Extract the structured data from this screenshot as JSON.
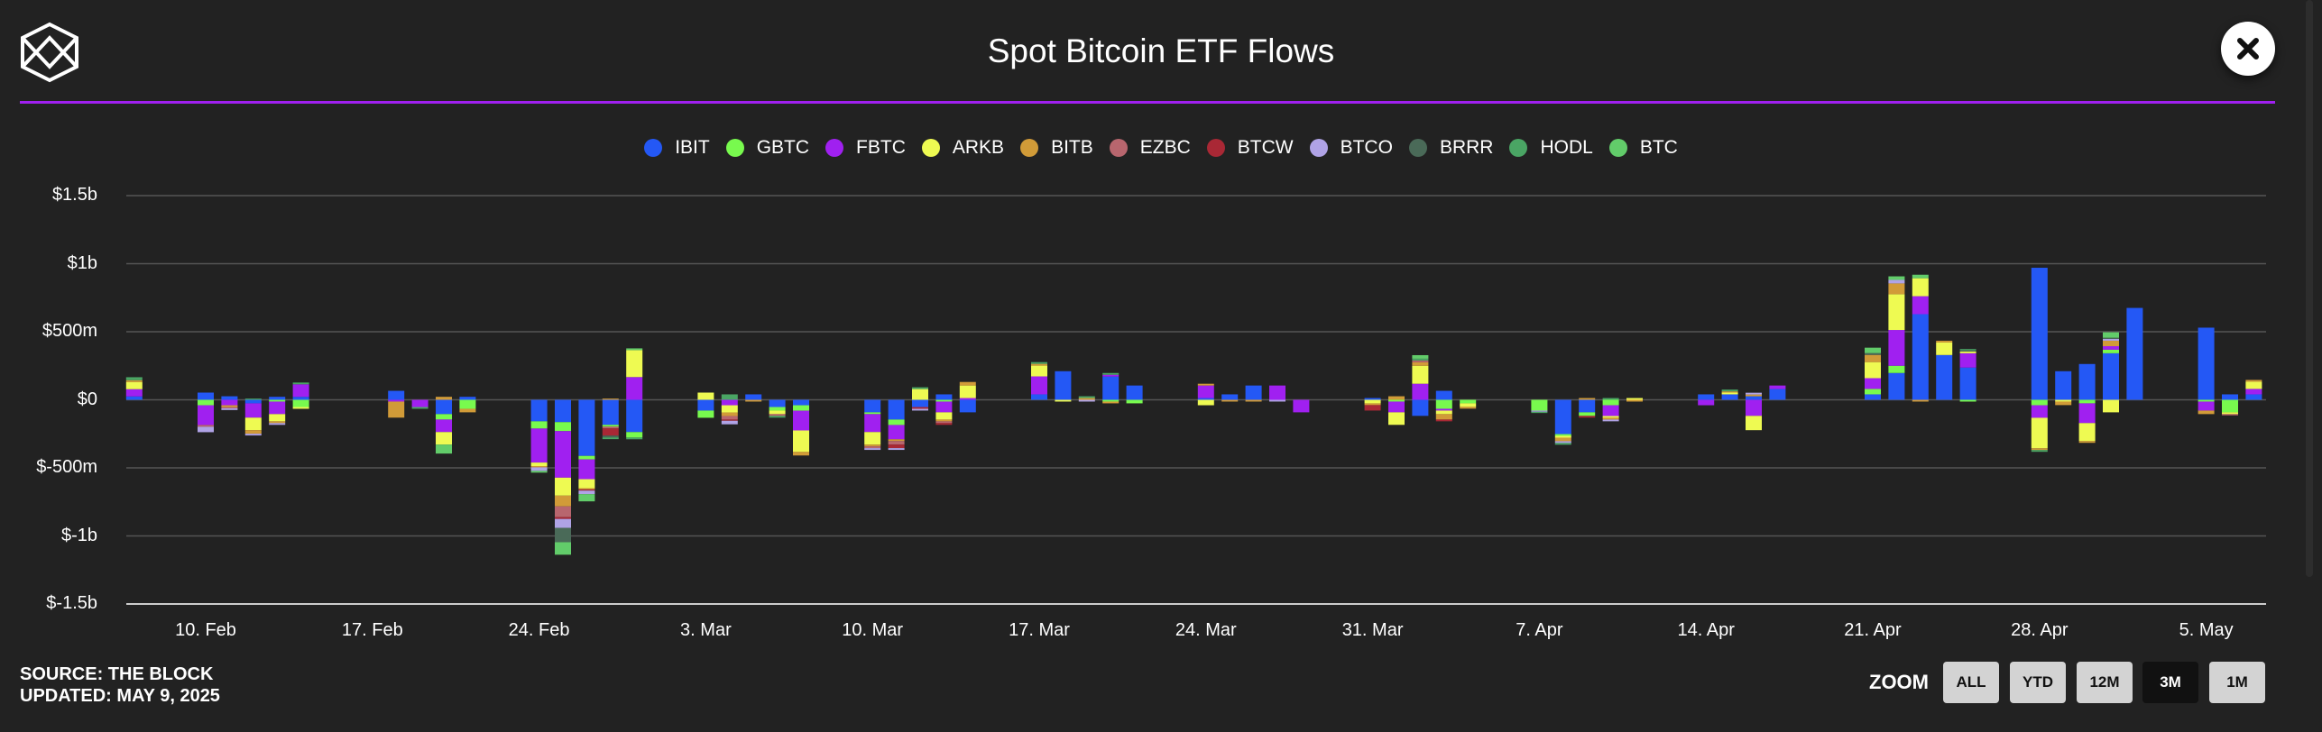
{
  "header": {
    "title": "Spot Bitcoin ETF Flows",
    "close_icon": "close-icon",
    "logo_icon": "the-block-logo-icon"
  },
  "footer": {
    "source": "SOURCE: THE BLOCK",
    "updated": "UPDATED: MAY 9, 2025"
  },
  "zoom": {
    "label": "ZOOM",
    "buttons": [
      "ALL",
      "YTD",
      "12M",
      "3M",
      "1M"
    ],
    "active": "3M"
  },
  "chart_data": {
    "type": "bar",
    "stacked": true,
    "title": "Spot Bitcoin ETF Flows",
    "xlabel": "",
    "ylabel": "",
    "ylim": [
      -1500,
      1500
    ],
    "units": "USD millions",
    "grid": true,
    "legend_position": "top",
    "yticks": [
      {
        "v": 1500,
        "label": "$1.5b"
      },
      {
        "v": 1000,
        "label": "$1b"
      },
      {
        "v": 500,
        "label": "$500m"
      },
      {
        "v": 0,
        "label": "$0"
      },
      {
        "v": -500,
        "label": "$-500m"
      },
      {
        "v": -1000,
        "label": "$-1b"
      },
      {
        "v": -1500,
        "label": "$-1.5b"
      }
    ],
    "xticks": [
      {
        "date": "2025-02-10",
        "label": "10. Feb"
      },
      {
        "date": "2025-02-17",
        "label": "17. Feb"
      },
      {
        "date": "2025-02-24",
        "label": "24. Feb"
      },
      {
        "date": "2025-03-03",
        "label": "3. Mar"
      },
      {
        "date": "2025-03-10",
        "label": "10. Mar"
      },
      {
        "date": "2025-03-17",
        "label": "17. Mar"
      },
      {
        "date": "2025-03-24",
        "label": "24. Mar"
      },
      {
        "date": "2025-03-31",
        "label": "31. Mar"
      },
      {
        "date": "2025-04-07",
        "label": "7. Apr"
      },
      {
        "date": "2025-04-14",
        "label": "14. Apr"
      },
      {
        "date": "2025-04-21",
        "label": "21. Apr"
      },
      {
        "date": "2025-04-28",
        "label": "28. Apr"
      },
      {
        "date": "2025-05-05",
        "label": "5. May"
      }
    ],
    "series": [
      {
        "name": "IBIT",
        "color": "#2458f5"
      },
      {
        "name": "GBTC",
        "color": "#78fa4e"
      },
      {
        "name": "FBTC",
        "color": "#a020f0"
      },
      {
        "name": "ARKB",
        "color": "#eefa52"
      },
      {
        "name": "BITB",
        "color": "#d19b38"
      },
      {
        "name": "EZBC",
        "color": "#b8666e"
      },
      {
        "name": "BTCW",
        "color": "#a92835"
      },
      {
        "name": "BTCO",
        "color": "#b0a3e6"
      },
      {
        "name": "BRRR",
        "color": "#4a6a58"
      },
      {
        "name": "HODL",
        "color": "#4aa564"
      },
      {
        "name": "BTC",
        "color": "#62cc6a"
      }
    ],
    "days": [
      {
        "date": "2025-02-07",
        "IBIT": 25,
        "FBTC": 53,
        "ARKB": 53,
        "BITB": 13,
        "HODL": 22
      },
      {
        "date": "2025-02-10",
        "IBIT": 53,
        "GBTC": -40,
        "FBTC": -145,
        "EZBC": -13,
        "BTCO": -40
      },
      {
        "date": "2025-02-11",
        "IBIT": 26,
        "FBTC": -40,
        "BITB": -13,
        "EZBC": -9,
        "BTCO": -13
      },
      {
        "date": "2025-02-12",
        "IBIT": -26,
        "FBTC": -105,
        "ARKB": -92,
        "BITB": -26,
        "BTCO": -13,
        "HODL": 9
      },
      {
        "date": "2025-02-13",
        "IBIT": 22,
        "GBTC": -13,
        "FBTC": -92,
        "ARKB": -53,
        "BITB": -13,
        "BTCO": -13
      },
      {
        "date": "2025-02-14",
        "IBIT": 22,
        "FBTC": 92,
        "HODL": 13,
        "GBTC": -53,
        "ARKB": -13
      },
      {
        "date": "2025-02-18",
        "IBIT": 66,
        "FBTC": -13,
        "BITB": -118
      },
      {
        "date": "2025-02-19",
        "FBTC": -53,
        "HODL": -13
      },
      {
        "date": "2025-02-20",
        "BITB": 22,
        "IBIT": -105,
        "GBTC": -40,
        "FBTC": -92,
        "ARKB": -92,
        "BTC": -66
      },
      {
        "date": "2025-02-21",
        "IBIT": 22,
        "GBTC": -66,
        "BITB": -26
      },
      {
        "date": "2025-02-24",
        "IBIT": -158,
        "GBTC": -53,
        "FBTC": -250,
        "ARKB": -26,
        "BITB": -9,
        "BTCO": -26,
        "BTC": -13
      },
      {
        "date": "2025-02-25",
        "IBIT": -164,
        "GBTC": -66,
        "FBTC": -342,
        "ARKB": -132,
        "BITB": -79,
        "EZBC": -79,
        "BTCW": -13,
        "BTCO": -66,
        "BRRR": -105,
        "BTC": -92
      },
      {
        "date": "2025-02-26",
        "IBIT": -412,
        "GBTC": -26,
        "FBTC": -145,
        "ARKB": -66,
        "BITB": -9,
        "BTCW": -9,
        "BTCO": -26,
        "BTC": -53
      },
      {
        "date": "2025-02-27",
        "BITB": 9,
        "IBIT": -184,
        "GBTC": -13,
        "EZBC": -13,
        "BTCW": -53,
        "BRRR": -13,
        "HODL": -13
      },
      {
        "date": "2025-02-28",
        "FBTC": 167,
        "ARKB": 198,
        "BTC": 13,
        "IBIT": -237,
        "GBTC": -40,
        "HODL": -13
      },
      {
        "date": "2025-03-03",
        "ARKB": 53,
        "IBIT": -79,
        "GBTC": -53
      },
      {
        "date": "2025-03-04",
        "HODL": 40,
        "FBTC": -40,
        "ARKB": -53,
        "BITB": -26,
        "EZBC": -26,
        "BTCW": -9,
        "BTCO": -26
      },
      {
        "date": "2025-03-05",
        "IBIT": 40,
        "BITB": -13
      },
      {
        "date": "2025-03-06",
        "IBIT": -53,
        "GBTC": -26,
        "ARKB": -26,
        "EZBC": -13,
        "HODL": -13
      },
      {
        "date": "2025-03-07",
        "IBIT": -40,
        "GBTC": -40,
        "FBTC": -145,
        "ARKB": -158,
        "BITB": -26
      },
      {
        "date": "2025-03-10",
        "IBIT": -92,
        "GBTC": -13,
        "FBTC": -132,
        "ARKB": -92,
        "BITB": -13,
        "EZBC": -13,
        "BTCO": -13
      },
      {
        "date": "2025-03-11",
        "IBIT": -145,
        "GBTC": -40,
        "FBTC": -105,
        "BITB": -13,
        "EZBC": -26,
        "BTCW": -26,
        "BTCO": -13
      },
      {
        "date": "2025-03-12",
        "ARKB": 79,
        "HODL": 13,
        "IBIT": -53,
        "BTCW": -13,
        "BTCO": -13
      },
      {
        "date": "2025-03-13",
        "IBIT": 40,
        "GBTC": -13,
        "FBTC": -79,
        "ARKB": -53,
        "BITB": -13,
        "EZBC": -13,
        "BTCW": -13
      },
      {
        "date": "2025-03-14",
        "FBTC": 13,
        "ARKB": 92,
        "BITB": 26,
        "IBIT": -92
      },
      {
        "date": "2025-03-17",
        "IBIT": 40,
        "FBTC": 132,
        "ARKB": 79,
        "BITB": 13,
        "HODL": 13
      },
      {
        "date": "2025-03-18",
        "IBIT": 210,
        "ARKB": -13
      },
      {
        "date": "2025-03-19",
        "BITB": 13,
        "HODL": 13,
        "BTCO": -13
      },
      {
        "date": "2025-03-20",
        "IBIT": 171,
        "FBTC": 13,
        "HODL": 13,
        "GBTC": -13,
        "BITB": -13
      },
      {
        "date": "2025-03-21",
        "IBIT": 105,
        "GBTC": -26
      },
      {
        "date": "2025-03-24",
        "IBIT": 13,
        "FBTC": 92,
        "BITB": 13,
        "ARKB": -40
      },
      {
        "date": "2025-03-25",
        "IBIT": 40,
        "BITB": -13
      },
      {
        "date": "2025-03-26",
        "IBIT": 105,
        "BITB": -13
      },
      {
        "date": "2025-03-27",
        "FBTC": 105,
        "BTCO": -13
      },
      {
        "date": "2025-03-28",
        "FBTC": -92
      },
      {
        "date": "2025-03-31",
        "IBIT": 13,
        "ARKB": -26,
        "BITB": -13,
        "BTCW": -40
      },
      {
        "date": "2025-04-01",
        "BITB": 26,
        "GBTC": -13,
        "FBTC": -79,
        "ARKB": -92
      },
      {
        "date": "2025-04-02",
        "FBTC": 118,
        "ARKB": 132,
        "BITB": 26,
        "EZBC": 13,
        "HODL": 13,
        "BTC": 26,
        "IBIT": -118
      },
      {
        "date": "2025-04-03",
        "IBIT": 66,
        "GBTC": -66,
        "FBTC": -13,
        "ARKB": -26,
        "BITB": -40,
        "BTCW": -13
      },
      {
        "date": "2025-04-04",
        "GBTC": -26,
        "ARKB": -26,
        "BITB": -13
      },
      {
        "date": "2025-04-07",
        "GBTC": -79,
        "BTCO": -9,
        "HODL": -9
      },
      {
        "date": "2025-04-08",
        "IBIT": -252,
        "GBTC": -13,
        "ARKB": -13,
        "BITB": -26,
        "BTCO": -13,
        "HODL": -13
      },
      {
        "date": "2025-04-09",
        "BITB": 13,
        "IBIT": -92,
        "GBTC": -26,
        "BTCW": -13
      },
      {
        "date": "2025-04-10",
        "HODL": 13,
        "GBTC": -40,
        "FBTC": -79,
        "ARKB": -13,
        "BITB": -13,
        "BTCO": -13
      },
      {
        "date": "2025-04-11",
        "ARKB": 13,
        "BITB": -13
      },
      {
        "date": "2025-04-14",
        "IBIT": 40,
        "FBTC": -40
      },
      {
        "date": "2025-04-15",
        "IBIT": 40,
        "ARKB": 13,
        "BITB": 9,
        "HODL": 13
      },
      {
        "date": "2025-04-16",
        "IBIT": 26,
        "BITB": 13,
        "BTCO": 13,
        "FBTC": -118,
        "ARKB": -105
      },
      {
        "date": "2025-04-17",
        "IBIT": 79,
        "FBTC": 26
      },
      {
        "date": "2025-04-21",
        "IBIT": 40,
        "GBTC": 40,
        "FBTC": 79,
        "ARKB": 118,
        "BITB": 53,
        "BRRR": 13,
        "BTC": 40
      },
      {
        "date": "2025-04-22",
        "IBIT": 197,
        "GBTC": 53,
        "FBTC": 263,
        "ARKB": 263,
        "BITB": 79,
        "BTCO": 26,
        "BTC": 26
      },
      {
        "date": "2025-04-23",
        "IBIT": 629,
        "FBTC": 132,
        "ARKB": 132,
        "BTC": 26,
        "BITB": -13
      },
      {
        "date": "2025-04-24",
        "IBIT": 329,
        "ARKB": 92,
        "BITB": 13
      },
      {
        "date": "2025-04-25",
        "IBIT": 237,
        "FBTC": 105,
        "ARKB": 13,
        "BRRR": 9,
        "HODL": 9,
        "GBTC": -13
      },
      {
        "date": "2025-04-28",
        "IBIT": 970,
        "GBTC": -40,
        "FBTC": -92,
        "ARKB": -224,
        "BITB": -13,
        "HODL": -13
      },
      {
        "date": "2025-04-29",
        "IBIT": 210,
        "ARKB": -13,
        "BITB": -26
      },
      {
        "date": "2025-04-30",
        "IBIT": 263,
        "GBTC": -26,
        "FBTC": -145,
        "ARKB": -132,
        "BITB": -13
      },
      {
        "date": "2025-05-01",
        "IBIT": 342,
        "GBTC": 26,
        "FBTC": 26,
        "BITB": 40,
        "BTCO": 13,
        "BRRR": 9,
        "BTC": 40,
        "ARKB": -92
      },
      {
        "date": "2025-05-02",
        "IBIT": 675
      },
      {
        "date": "2025-05-05",
        "IBIT": 530,
        "GBTC": -13,
        "FBTC": -66,
        "BITB": -26
      },
      {
        "date": "2025-05-06",
        "IBIT": 40,
        "GBTC": -92,
        "ARKB": -13,
        "EZBC": -9
      },
      {
        "date": "2025-05-07",
        "IBIT": 40,
        "FBTC": 40,
        "ARKB": 53,
        "BITB": 13
      }
    ]
  }
}
